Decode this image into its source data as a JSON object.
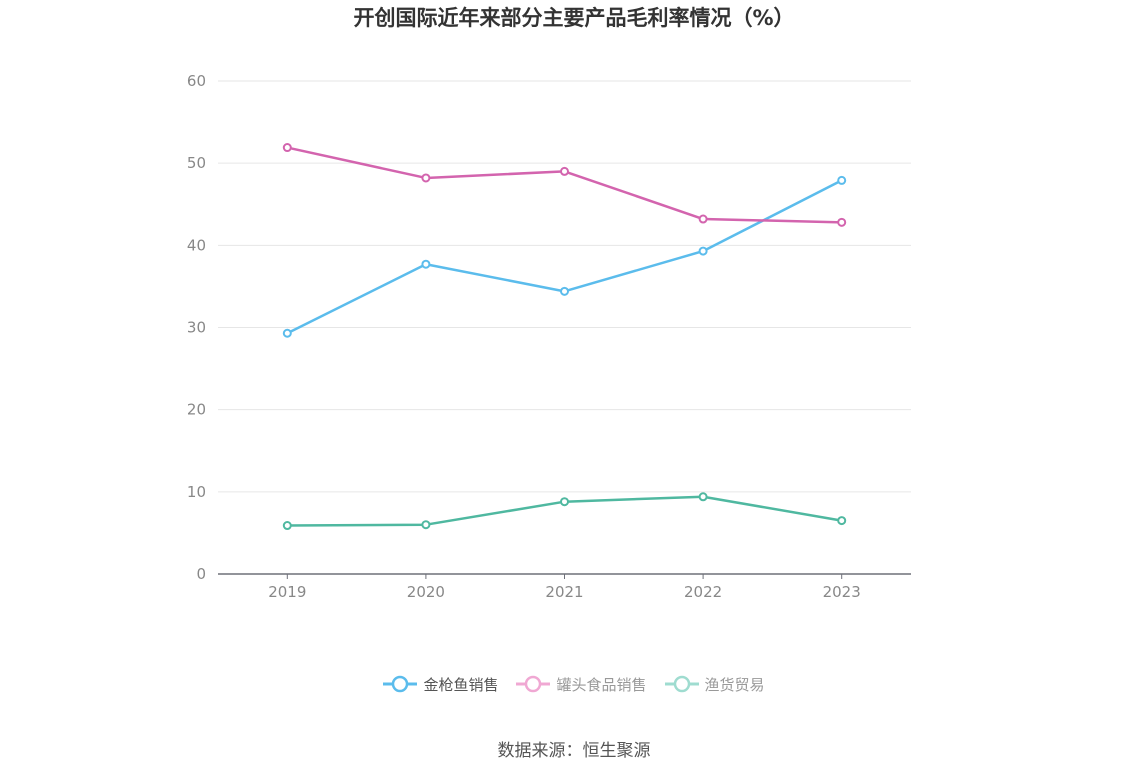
{
  "chart_data": {
    "type": "line",
    "title": "开创国际近年来部分主要产品毛利率情况（%）",
    "x": [
      "2019",
      "2020",
      "2021",
      "2022",
      "2023"
    ],
    "ylim": [
      0,
      60
    ],
    "yticks": [
      0,
      10,
      20,
      30,
      40,
      50,
      60
    ],
    "grid": true,
    "legend_position": "bottom",
    "series": [
      {
        "name": "金枪鱼销售",
        "color": "#5bbcec",
        "values": [
          29.3,
          37.7,
          34.4,
          39.3,
          47.9
        ]
      },
      {
        "name": "罐头食品销售",
        "color": "#d364ae",
        "values": [
          51.9,
          48.2,
          49.0,
          43.2,
          42.8
        ]
      },
      {
        "name": "渔货贸易",
        "color": "#4fb8a0",
        "values": [
          5.9,
          6.0,
          8.8,
          9.4,
          6.5
        ]
      }
    ]
  },
  "legend": {
    "items": [
      {
        "label": "金枪鱼销售",
        "color": "#5bbcec",
        "active": true
      },
      {
        "label": "罐头食品销售",
        "color": "#f0a8d3",
        "active": false
      },
      {
        "label": "渔货贸易",
        "color": "#9fdcd0",
        "active": false
      }
    ]
  },
  "source": "数据来源：恒生聚源"
}
